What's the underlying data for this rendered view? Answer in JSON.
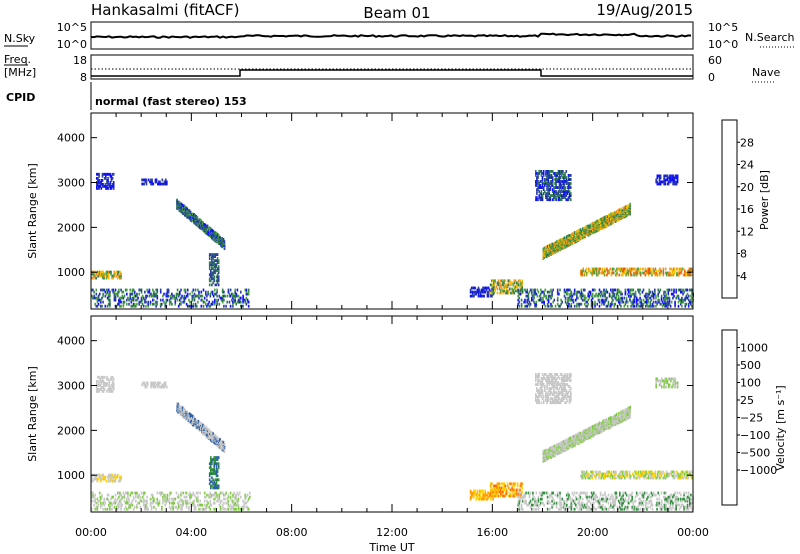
{
  "header": {
    "station": "Hankasalmi (fitACF)",
    "beam": "Beam 01",
    "date": "19/Aug/2015"
  },
  "noise_panel": {
    "left_label": "N.Sky",
    "right_label": "N.Search",
    "left_ticks": [
      "10^5",
      "10^0"
    ],
    "right_ticks": [
      "10^5",
      "10^0"
    ]
  },
  "freq_panel": {
    "left_label_top": "Freq.",
    "left_label_bottom": "[MHz]",
    "right_label": "Nave",
    "left_ticks": [
      "18",
      "8"
    ],
    "right_ticks": [
      "60",
      "0"
    ]
  },
  "cpid": {
    "label": "CPID",
    "value": "normal (fast stereo) 153"
  },
  "colors": {
    "power": [
      "#1010ff",
      "#2a3f9e",
      "#2f7d4e",
      "#4aa040",
      "#f2c000",
      "#f0901a",
      "#ef5a0a",
      "#e00000"
    ],
    "velocity": [
      "#ff0000",
      "#ff6a00",
      "#ffa000",
      "#ffd000",
      "#c8c8c8",
      "#c8c8c8",
      "#7fcc3f",
      "#2f8f3a",
      "#2a5fa8",
      "#1a1aaa"
    ]
  },
  "chart_data": [
    {
      "type": "heatmap",
      "quantity": "power",
      "ylabel": "Slant Range [km]",
      "ylim": [
        180,
        4550
      ],
      "yticks": [
        "1000",
        "2000",
        "3000",
        "4000"
      ],
      "xlim": [
        0,
        24
      ],
      "xticks": [
        "00:00",
        "04:00",
        "08:00",
        "12:00",
        "16:00",
        "20:00",
        "00:00"
      ],
      "colorbar": {
        "label": "Power [dB]",
        "range": [
          0,
          32
        ],
        "ticks": [
          "4",
          "8",
          "12",
          "16",
          "20",
          "24",
          "28"
        ]
      }
    },
    {
      "type": "heatmap",
      "quantity": "velocity",
      "ylabel": "Slant Range [km]",
      "ylim": [
        180,
        4550
      ],
      "yticks": [
        "1000",
        "2000",
        "3000",
        "4000"
      ],
      "xlim": [
        0,
        24
      ],
      "xticks": [
        "00:00",
        "04:00",
        "08:00",
        "12:00",
        "16:00",
        "20:00",
        "00:00"
      ],
      "xlabel": "Time UT",
      "colorbar": {
        "label": "Velocity [m s⁻¹]",
        "ticks": [
          "1000",
          "500",
          "100",
          "25",
          "−25",
          "−100",
          "−500",
          "−1000"
        ]
      }
    }
  ]
}
